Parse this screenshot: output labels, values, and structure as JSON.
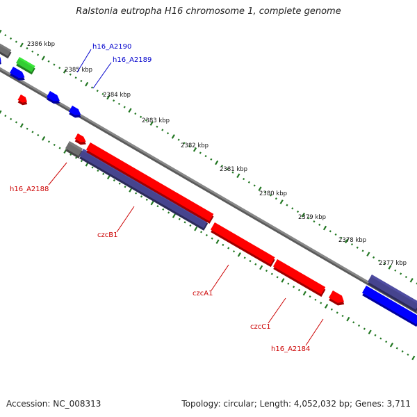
{
  "title": "Ralstonia eutropha H16 chromosome 1, complete genome",
  "footer": {
    "accession": "Accession: NC_008313",
    "topology": "Topology: circular; Length: 4,052,032 bp; Genes: 3,711"
  },
  "scale_labels": [
    "2386 kbp",
    "2385 kbp",
    "2384 kbp",
    "2383 kbp",
    "2382 kbp",
    "2381 kbp",
    "2380 kbp",
    "2379 kbp",
    "2378 kbp",
    "2377 kbp"
  ],
  "gene_labels": [
    {
      "text": "h16_A2190",
      "color": "#0000cc"
    },
    {
      "text": "h16_A2189",
      "color": "#0000cc"
    },
    {
      "text": "h16_A2188",
      "color": "#cc0000"
    },
    {
      "text": "czcB1",
      "color": "#cc0000"
    },
    {
      "text": "czcA1",
      "color": "#cc0000"
    },
    {
      "text": "czcC1",
      "color": "#cc0000"
    },
    {
      "text": "h16_A2184",
      "color": "#cc0000"
    }
  ],
  "colors": {
    "red": "#ff0000",
    "blue": "#0000ff",
    "navy": "#46448e",
    "gray": "#6e6e6e",
    "green": "#33cc33",
    "tick": "#227722",
    "backbone": "#888888"
  }
}
